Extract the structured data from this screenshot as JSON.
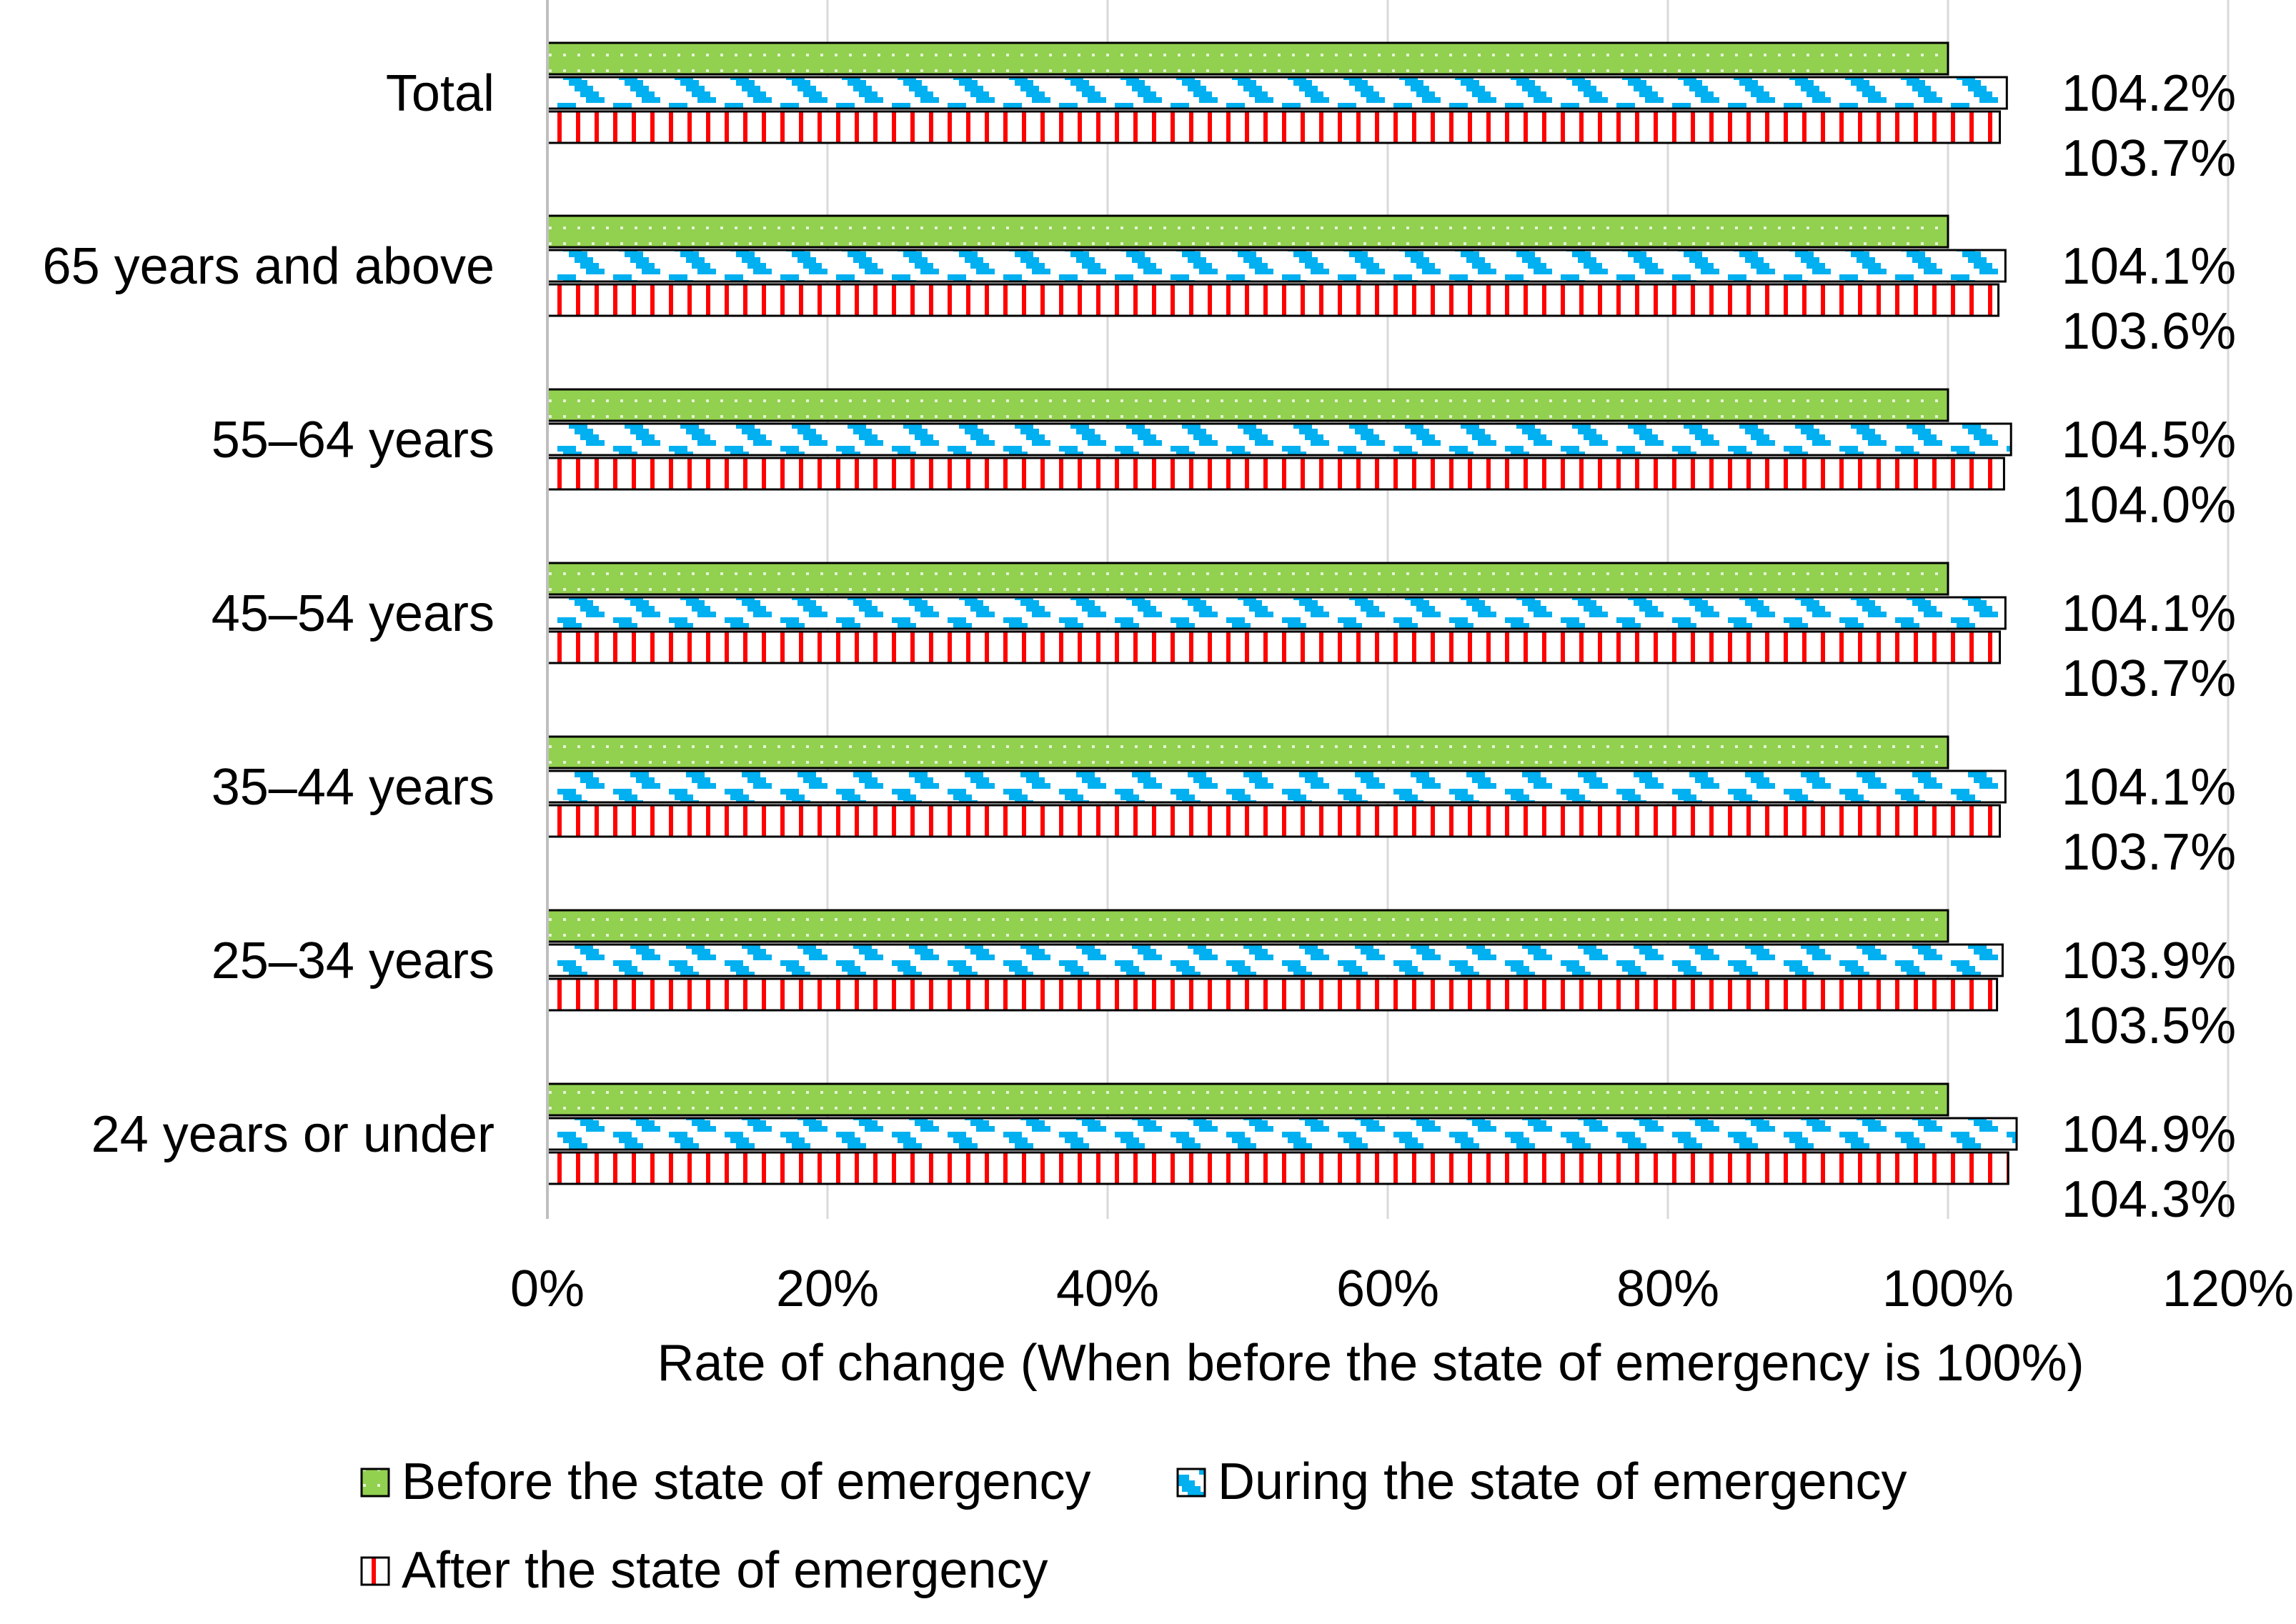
{
  "chart_data": {
    "type": "bar",
    "orientation": "horizontal",
    "categories": [
      "Total",
      "65 years and above",
      "55–64 years",
      "45–54 years",
      "35–44 years",
      "25–34 years",
      "24 years or under"
    ],
    "series": [
      {
        "name": "Before the state of emergency",
        "values": [
          100,
          100,
          100,
          100,
          100,
          100,
          100
        ],
        "color": "#92d050",
        "pattern": "dotted"
      },
      {
        "name": "During the state of emergency",
        "values": [
          104.2,
          104.1,
          104.5,
          104.1,
          104.1,
          103.9,
          104.9
        ],
        "color": "#00b0f0",
        "pattern": "diagonal-steps"
      },
      {
        "name": "After the state of emergency",
        "values": [
          103.7,
          103.6,
          104.0,
          103.7,
          103.7,
          103.5,
          104.3
        ],
        "color": "#ff0000",
        "pattern": "vertical-stripes"
      }
    ],
    "data_labels": {
      "during": [
        "104.2%",
        "104.1%",
        "104.5%",
        "104.1%",
        "104.1%",
        "103.9%",
        "104.9%"
      ],
      "after": [
        "103.7%",
        "103.6%",
        "104.0%",
        "103.7%",
        "103.7%",
        "103.5%",
        "104.3%"
      ]
    },
    "xlabel": "Rate of change (When before the state of emergency is 100%)",
    "xlim": [
      0,
      120
    ],
    "xticks": [
      0,
      20,
      40,
      60,
      80,
      100,
      120
    ],
    "xtick_labels": [
      "0%",
      "20%",
      "40%",
      "60%",
      "80%",
      "100%",
      "120%"
    ],
    "grid": "vertical",
    "legend_position": "bottom"
  }
}
